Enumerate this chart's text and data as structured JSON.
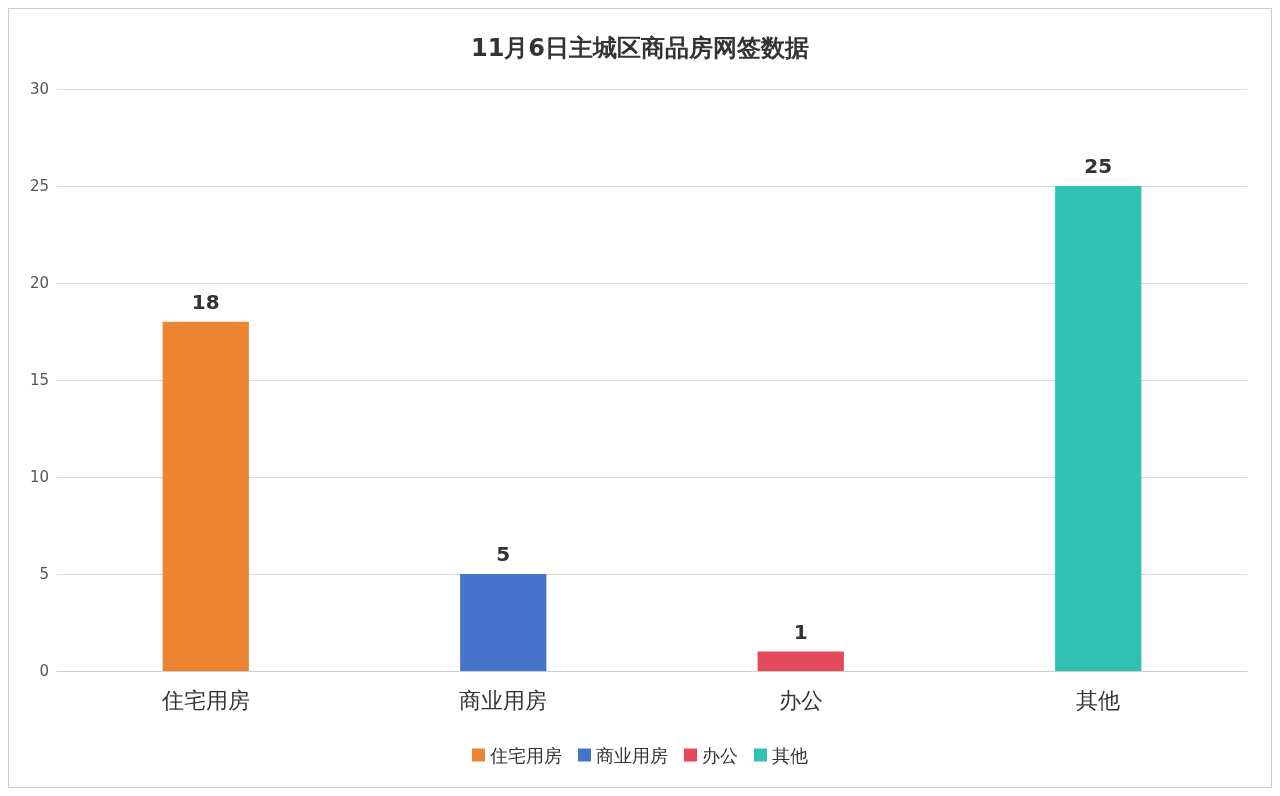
{
  "chart_data": {
    "type": "bar",
    "title": "11月6日主城区商品房网签数据",
    "categories": [
      "住宅用房",
      "商业用房",
      "办公",
      "其他"
    ],
    "series": [
      {
        "name": "住宅用房",
        "color": "#ed8431",
        "values": [
          18,
          null,
          null,
          null
        ]
      },
      {
        "name": "商业用房",
        "color": "#4674ca",
        "values": [
          null,
          5,
          null,
          null
        ]
      },
      {
        "name": "办公",
        "color": "#e24a5c",
        "values": [
          null,
          null,
          1,
          null
        ]
      },
      {
        "name": "其他",
        "color": "#30c1b4",
        "values": [
          null,
          null,
          null,
          25
        ]
      }
    ],
    "ylim": [
      0,
      30
    ],
    "yticks": [
      0,
      5,
      10,
      15,
      20,
      25,
      30
    ],
    "grid": "y",
    "legend": "bottom",
    "data_labels": true
  }
}
